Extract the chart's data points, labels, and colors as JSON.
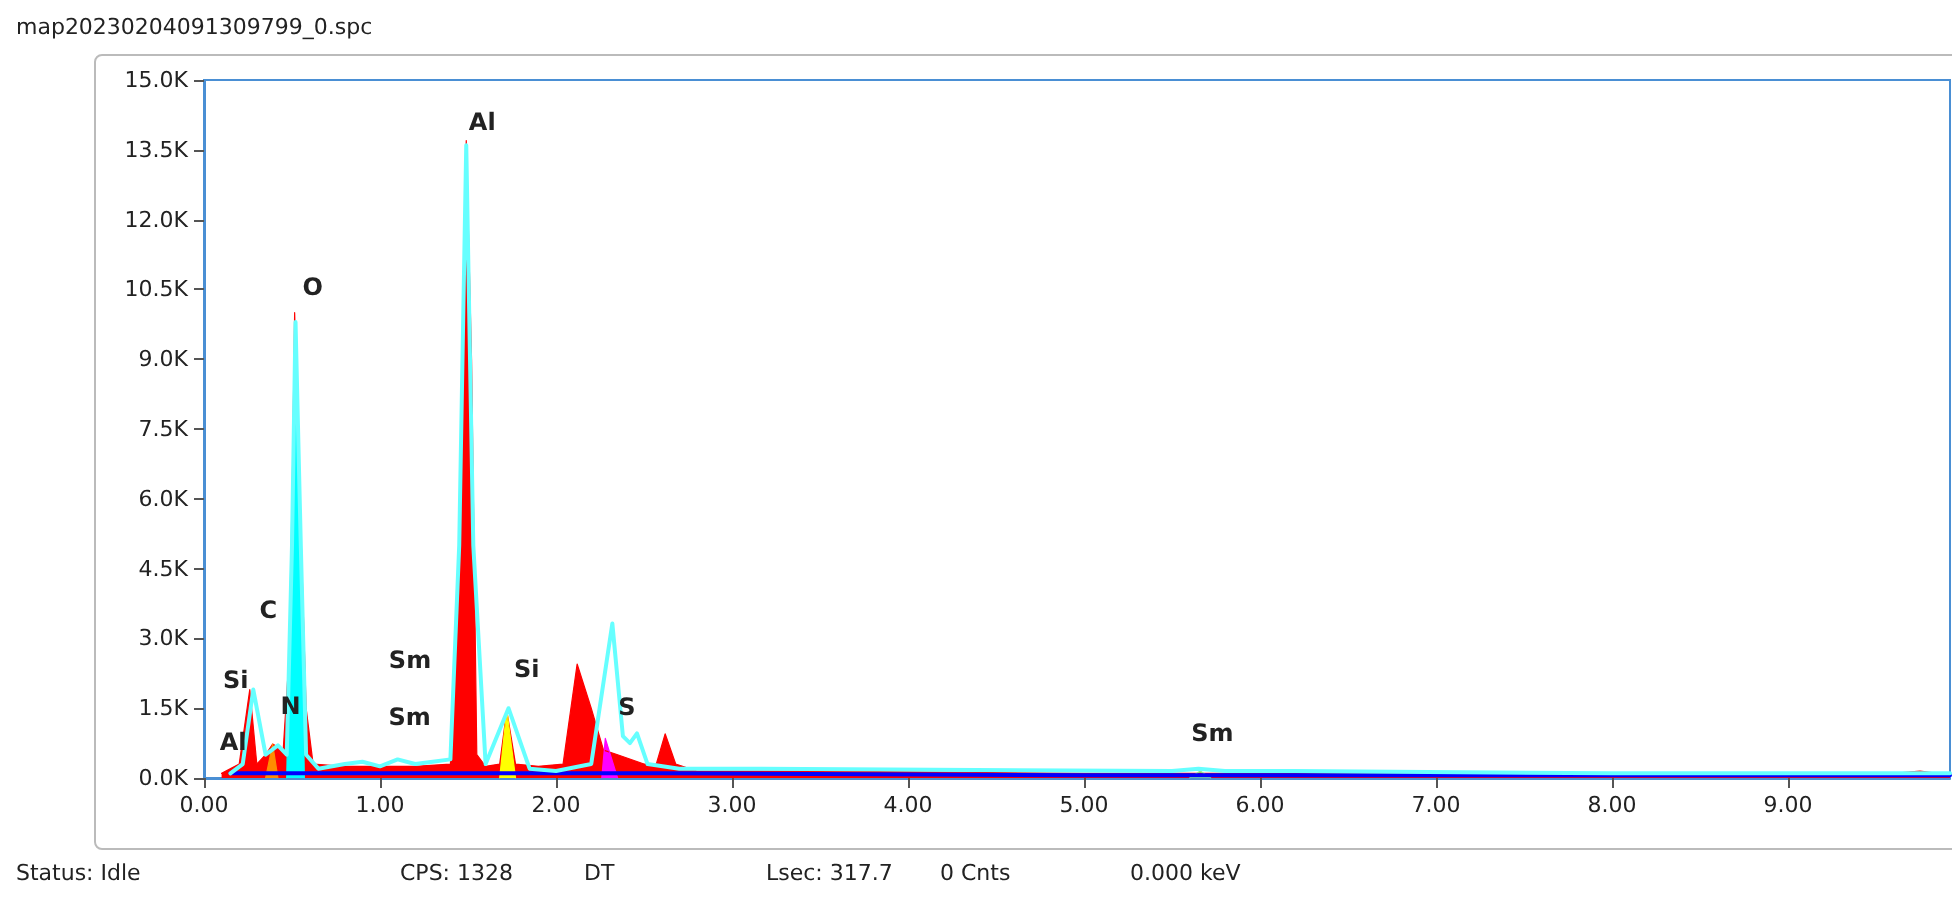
{
  "chart_data": {
    "type": "area",
    "title": "map20230204091309799_0.spc",
    "xlim": [
      0,
      9.92
    ],
    "xticks": [
      {
        "value": 0,
        "label": "0.00"
      },
      {
        "value": 1,
        "label": "1.00"
      },
      {
        "value": 2,
        "label": "2.00"
      },
      {
        "value": 3,
        "label": "3.00"
      },
      {
        "value": 4,
        "label": "4.00"
      },
      {
        "value": 5,
        "label": "5.00"
      },
      {
        "value": 6,
        "label": "6.00"
      },
      {
        "value": 7,
        "label": "7.00"
      },
      {
        "value": 8,
        "label": "8.00"
      },
      {
        "value": 9,
        "label": "9.00"
      }
    ],
    "ylim": [
      0,
      15000
    ],
    "yticks": [
      {
        "value": 0,
        "label": "0.0K"
      },
      {
        "value": 1500,
        "label": "1.5K"
      },
      {
        "value": 3000,
        "label": "3.0K"
      },
      {
        "value": 4500,
        "label": "4.5K"
      },
      {
        "value": 6000,
        "label": "6.0K"
      },
      {
        "value": 7500,
        "label": "7.5K"
      },
      {
        "value": 9000,
        "label": "9.0K"
      },
      {
        "value": 10500,
        "label": "10.5K"
      },
      {
        "value": 12000,
        "label": "12.0K"
      },
      {
        "value": 13500,
        "label": "13.5K"
      },
      {
        "value": 15000,
        "label": "15.0K"
      }
    ],
    "grid": false,
    "marker": "none",
    "series": [
      {
        "color": "#ff0000",
        "x": [
          0.1,
          0.2,
          0.26,
          0.3,
          0.35,
          0.39,
          0.45,
          0.49,
          0.515,
          0.53,
          0.55,
          0.58,
          0.62,
          0.8,
          1.0,
          1.2,
          1.4,
          1.45,
          1.49,
          1.52,
          1.55,
          1.6,
          1.68,
          1.72,
          1.77,
          1.9,
          2.04,
          2.12,
          2.2,
          2.27,
          2.35,
          2.5,
          2.57,
          2.62,
          2.68,
          2.8,
          3.5,
          5.0,
          7.0,
          9.6,
          9.75,
          9.85,
          9.92
        ],
        "values": [
          100,
          300,
          1900,
          300,
          500,
          730,
          600,
          3000,
          10000,
          7800,
          5400,
          1500,
          300,
          250,
          250,
          250,
          300,
          4000,
          13700,
          9000,
          500,
          250,
          300,
          1450,
          300,
          250,
          300,
          2450,
          1500,
          600,
          500,
          300,
          300,
          950,
          300,
          150,
          150,
          100,
          100,
          100,
          150,
          100,
          100
        ]
      },
      {
        "color": "#ff8c00",
        "x": [
          0.35,
          0.39,
          0.42
        ],
        "values": [
          0,
          730,
          0
        ]
      },
      {
        "color": "#00ffff",
        "x": [
          0.47,
          0.5,
          0.52,
          0.55,
          0.57
        ],
        "values": [
          0,
          6000,
          9200,
          5000,
          0
        ]
      },
      {
        "color": "#ffff00",
        "x": [
          1.68,
          1.72,
          1.77
        ],
        "values": [
          0,
          1470,
          0
        ]
      },
      {
        "color": "#ff00ff",
        "x": [
          2.26,
          2.28,
          2.35
        ],
        "values": [
          0,
          850,
          0
        ]
      },
      {
        "color": "#90ee90",
        "x": [
          5.6,
          5.66,
          5.72
        ],
        "values": [
          0,
          150,
          0
        ]
      },
      {
        "type": "line",
        "color": "#0000ff",
        "x": [
          0.15,
          1.0,
          2.0,
          2.6,
          5.0,
          9.92
        ],
        "values": [
          100,
          100,
          100,
          100,
          60,
          60
        ]
      },
      {
        "type": "line",
        "color": "#66ffff",
        "x": [
          0.15,
          0.22,
          0.28,
          0.35,
          0.42,
          0.47,
          0.5,
          0.52,
          0.55,
          0.58,
          0.65,
          0.8,
          0.9,
          1.0,
          1.1,
          1.2,
          1.3,
          1.4,
          1.45,
          1.49,
          1.53,
          1.6,
          1.73,
          1.85,
          2.0,
          2.2,
          2.32,
          2.38,
          2.42,
          2.46,
          2.52,
          2.7,
          3.0,
          5.5,
          5.65,
          5.8,
          6.2,
          8.0,
          9.92
        ],
        "values": [
          100,
          300,
          1900,
          500,
          700,
          500,
          5000,
          9800,
          5000,
          500,
          200,
          300,
          350,
          250,
          400,
          300,
          350,
          400,
          5000,
          13600,
          5000,
          300,
          1500,
          200,
          150,
          300,
          3320,
          900,
          750,
          960,
          300,
          200,
          200,
          150,
          200,
          150,
          150,
          100,
          100
        ]
      }
    ],
    "annotations": [
      {
        "text": "Si",
        "x": 0.26,
        "y": 1900
      },
      {
        "text": "Al",
        "x": 0.2,
        "y": 300
      },
      {
        "text": "C",
        "x": 0.49,
        "y": 3000
      },
      {
        "text": "N",
        "x": 0.39,
        "y": 730
      },
      {
        "text": "O",
        "x": 0.515,
        "y": 10000
      },
      {
        "text": "Sm",
        "x": 1.1,
        "y": 400
      },
      {
        "text": "Al",
        "x": 1.49,
        "y": 13700
      },
      {
        "text": "Si",
        "x": 1.72,
        "y": 1450
      },
      {
        "text": "S",
        "x": 2.46,
        "y": 960
      },
      {
        "text": "Sm",
        "x": 5.65,
        "y": 200
      },
      "Sm",
      "Status: Idle",
      "CPS: 1328",
      "DT",
      "Lsec: 317.7",
      "0 Cnts",
      "0.000 keV"
    ]
  }
}
